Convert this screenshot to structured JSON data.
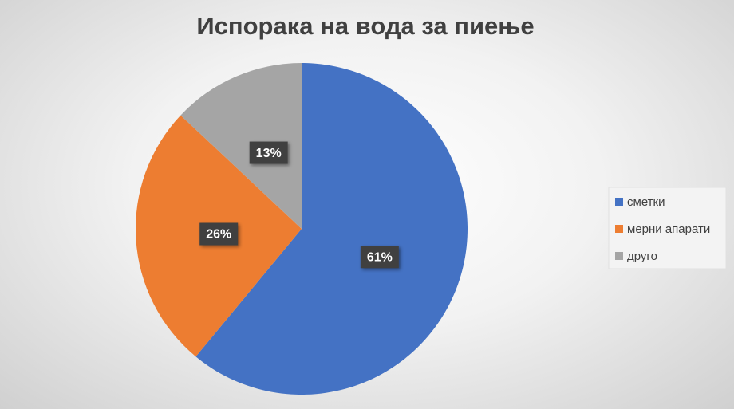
{
  "chart_data": {
    "type": "pie",
    "title": "Испорака на вода за пиење",
    "categories": [
      "сметки",
      "мерни апарати",
      "друго"
    ],
    "values": [
      61,
      26,
      13
    ],
    "value_labels": [
      "61%",
      "26%",
      "13%"
    ],
    "colors": [
      "#4472c4",
      "#ed7d31",
      "#a5a5a5"
    ],
    "legend": "right"
  }
}
